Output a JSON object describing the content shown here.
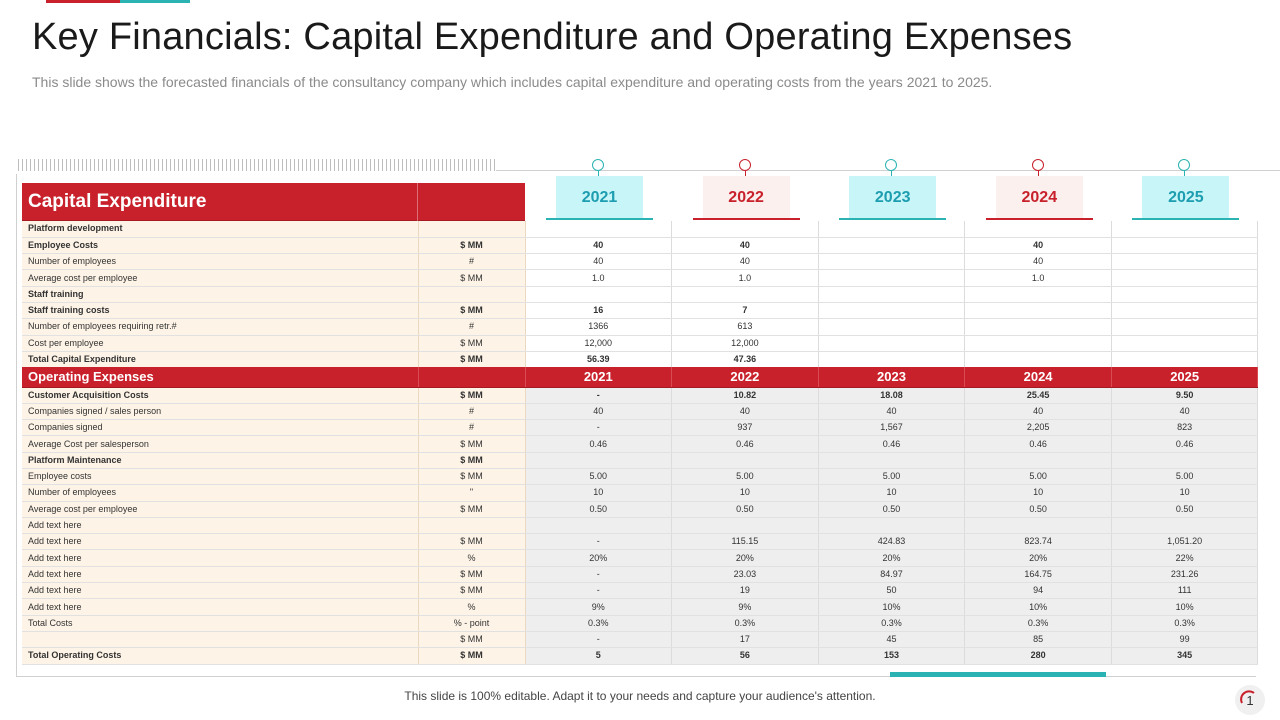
{
  "title": "Key Financials: Capital Expenditure and Operating Expenses",
  "subtitle": "This slide shows the forecasted financials of the consultancy company which includes capital expenditure and operating costs from the years 2021 to 2025.",
  "years": [
    "2021",
    "2022",
    "2023",
    "2024",
    "2025"
  ],
  "capex": {
    "header": "Capital Expenditure",
    "rows": [
      {
        "label": "Platform development",
        "unit": "",
        "values": [
          "",
          "",
          "",
          "",
          ""
        ],
        "bold": true
      },
      {
        "label": "Employee Costs",
        "unit": "$ MM",
        "values": [
          "40",
          "40",
          "",
          "40",
          ""
        ],
        "bold": true
      },
      {
        "label": "Number of employees",
        "unit": "#",
        "values": [
          "40",
          "40",
          "",
          "40",
          ""
        ],
        "bold": false
      },
      {
        "label": "Average cost per employee",
        "unit": "$ MM",
        "values": [
          "1.0",
          "1.0",
          "",
          "1.0",
          ""
        ],
        "bold": false
      },
      {
        "label": "Staff training",
        "unit": "",
        "values": [
          "",
          "",
          "",
          "",
          ""
        ],
        "bold": true
      },
      {
        "label": "Staff training costs",
        "unit": "$ MM",
        "values": [
          "16",
          "7",
          "",
          "",
          ""
        ],
        "bold": true
      },
      {
        "label": "Number of employees requiring retr.#",
        "unit": "#",
        "values": [
          "1366",
          "613",
          "",
          "",
          ""
        ],
        "bold": false
      },
      {
        "label": "Cost per employee",
        "unit": "$ MM",
        "values": [
          "12,000",
          "12,000",
          "",
          "",
          ""
        ],
        "bold": false
      },
      {
        "label": "Total Capital Expenditure",
        "unit": "$ MM",
        "values": [
          "56.39",
          "47.36",
          "",
          "",
          ""
        ],
        "bold": true
      }
    ]
  },
  "opex": {
    "header": "Operating Expenses",
    "rows": [
      {
        "label": "Customer Acquisition Costs",
        "unit": "$ MM",
        "values": [
          "-",
          "10.82",
          "18.08",
          "25.45",
          "9.50"
        ],
        "bold": true
      },
      {
        "label": "Companies signed / sales person",
        "unit": "#",
        "values": [
          "40",
          "40",
          "40",
          "40",
          "40"
        ],
        "bold": false
      },
      {
        "label": "Companies signed",
        "unit": "#",
        "values": [
          "-",
          "937",
          "1,567",
          "2,205",
          "823"
        ],
        "bold": false
      },
      {
        "label": "Average Cost per salesperson",
        "unit": "$ MM",
        "values": [
          "0.46",
          "0.46",
          "0.46",
          "0.46",
          "0.46"
        ],
        "bold": false
      },
      {
        "label": "Platform Maintenance",
        "unit": "$ MM",
        "values": [
          "",
          "",
          "",
          "",
          ""
        ],
        "bold": true
      },
      {
        "label": "Employee costs",
        "unit": "$ MM",
        "values": [
          "5.00",
          "5.00",
          "5.00",
          "5.00",
          "5.00"
        ],
        "bold": false
      },
      {
        "label": "Number of employees",
        "unit": "\"",
        "values": [
          "10",
          "10",
          "10",
          "10",
          "10"
        ],
        "bold": false
      },
      {
        "label": "Average cost per employee",
        "unit": "$ MM",
        "values": [
          "0.50",
          "0.50",
          "0.50",
          "0.50",
          "0.50"
        ],
        "bold": false
      },
      {
        "label": "Add text here",
        "unit": "",
        "values": [
          "",
          "",
          "",
          "",
          ""
        ],
        "bold": false
      },
      {
        "label": "Add text here",
        "unit": "$ MM",
        "values": [
          "-",
          "115.15",
          "424.83",
          "823.74",
          "1,051.20"
        ],
        "bold": false
      },
      {
        "label": "Add text here",
        "unit": "%",
        "values": [
          "20%",
          "20%",
          "20%",
          "20%",
          "22%"
        ],
        "bold": false
      },
      {
        "label": "Add text here",
        "unit": "$ MM",
        "values": [
          "-",
          "23.03",
          "84.97",
          "164.75",
          "231.26"
        ],
        "bold": false
      },
      {
        "label": "Add text here",
        "unit": "$ MM",
        "values": [
          "-",
          "19",
          "50",
          "94",
          "111"
        ],
        "bold": false
      },
      {
        "label": "Add text here",
        "unit": "%",
        "values": [
          "9%",
          "9%",
          "10%",
          "10%",
          "10%"
        ],
        "bold": false
      },
      {
        "label": "Total Costs",
        "unit": "% - point",
        "values": [
          "0.3%",
          "0.3%",
          "0.3%",
          "0.3%",
          "0.3%"
        ],
        "bold": false
      },
      {
        "label": "",
        "unit": "$ MM",
        "values": [
          "-",
          "17",
          "45",
          "85",
          "99"
        ],
        "bold": false
      },
      {
        "label": "Total Operating Costs",
        "unit": "$ MM",
        "values": [
          "5",
          "56",
          "153",
          "280",
          "345"
        ],
        "bold": true
      }
    ]
  },
  "footer": "This slide is 100% editable. Adapt it to your needs and capture your audience's attention.",
  "page_number": "1",
  "colors": {
    "accent_red": "#c8212b",
    "accent_teal": "#2bb3b3"
  }
}
